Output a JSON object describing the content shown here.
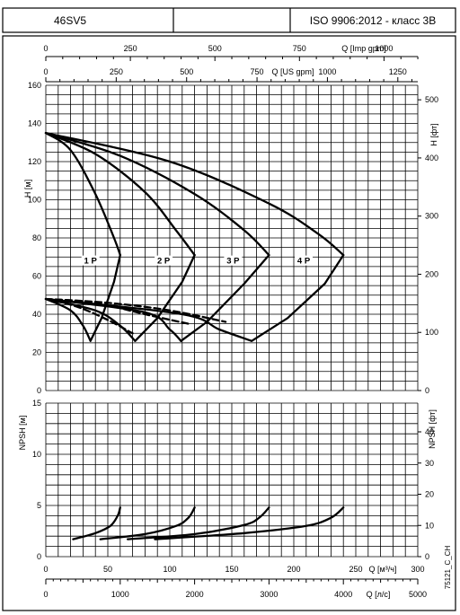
{
  "header": {
    "model": "46SV5",
    "standard": "ISO 9906:2012 - класс 3В"
  },
  "watermark": "75121_C_CH",
  "top_axes": {
    "imp_gpm": {
      "label": "Q [Imp gpm]",
      "ticks": [
        "0",
        "250",
        "500",
        "750",
        "1000"
      ],
      "values": [
        0,
        250,
        500,
        750,
        1000
      ]
    },
    "us_gpm": {
      "label": "Q [US gpm]",
      "ticks": [
        "0",
        "250",
        "500",
        "750",
        "1000",
        "1250"
      ],
      "values": [
        0,
        250,
        500,
        750,
        1000,
        1250
      ]
    }
  },
  "bottom_axes": {
    "m3h": {
      "label": "Q  [м³/ч]",
      "ticks": [
        "0",
        "50",
        "100",
        "150",
        "200",
        "250",
        "300"
      ],
      "values": [
        0,
        50,
        100,
        150,
        200,
        250,
        300
      ]
    },
    "ls": {
      "label": "Q  [л/с]",
      "ticks": [
        "0",
        "1000",
        "2000",
        "3000",
        "4000",
        "5000"
      ],
      "values": [
        0,
        1000,
        2000,
        3000,
        4000,
        5000
      ]
    }
  },
  "chart_data": [
    {
      "type": "line",
      "title": "",
      "xlabel": "Q [м³/ч]",
      "ylabel": "H [м]",
      "ylabel_right": "H [фт]",
      "xlim": [
        0,
        300
      ],
      "ylim": [
        0,
        160
      ],
      "y_ticks": [
        "0",
        "20",
        "40",
        "60",
        "80",
        "100",
        "120",
        "140",
        "160"
      ],
      "y_right_ticks": [
        "0",
        "100",
        "200",
        "300",
        "400",
        "500"
      ],
      "grid": true,
      "series": [
        {
          "name": "1 P",
          "x": [
            0,
            20,
            40,
            55,
            60
          ],
          "y": [
            135,
            126,
            103,
            80,
            71
          ]
        },
        {
          "name": "2 P",
          "x": [
            0,
            40,
            80,
            105,
            120
          ],
          "y": [
            135,
            124,
            104,
            84,
            71
          ]
        },
        {
          "name": "3 P",
          "x": [
            0,
            60,
            120,
            160,
            180
          ],
          "y": [
            135,
            123,
            103,
            84,
            71
          ]
        },
        {
          "name": "4 P",
          "x": [
            0,
            100,
            180,
            220,
            240
          ],
          "y": [
            135,
            120,
            98,
            82,
            71
          ]
        }
      ],
      "efficiency_curves": [
        {
          "x": [
            0,
            20,
            30,
            36,
            45,
            55,
            60
          ],
          "y": [
            48,
            42,
            34,
            26,
            38,
            57,
            71
          ]
        },
        {
          "x": [
            0,
            40,
            60,
            72,
            90,
            110,
            120
          ],
          "y": [
            48,
            42,
            34,
            26,
            38,
            57,
            71
          ]
        },
        {
          "x": [
            0,
            80,
            100,
            109,
            130,
            160,
            180
          ],
          "y": [
            48,
            41,
            32,
            26,
            36,
            56,
            71
          ]
        },
        {
          "x": [
            0,
            110,
            140,
            166,
            195,
            225,
            240
          ],
          "y": [
            48,
            40,
            32,
            26,
            38,
            56,
            71
          ]
        }
      ],
      "dashed_curves": [
        {
          "x": [
            0,
            25,
            50,
            70
          ],
          "y": [
            48,
            44,
            37,
            30
          ]
        },
        {
          "x": [
            0,
            40,
            80,
            115
          ],
          "y": [
            48,
            46,
            40,
            35
          ]
        },
        {
          "x": [
            0,
            50,
            100,
            145
          ],
          "y": [
            48,
            46,
            42,
            36
          ]
        }
      ],
      "stage_labels": [
        {
          "text": "1 P",
          "x": 36,
          "y": 67
        },
        {
          "text": "2 P",
          "x": 95,
          "y": 67
        },
        {
          "text": "3 P",
          "x": 151,
          "y": 67
        },
        {
          "text": "4 P",
          "x": 208,
          "y": 67
        }
      ]
    },
    {
      "type": "line",
      "title": "",
      "xlabel": "Q [м³/ч]",
      "ylabel": "NPSH [м]",
      "ylabel_right": "NPSH [фт]",
      "xlim": [
        0,
        300
      ],
      "ylim": [
        0,
        15
      ],
      "y_ticks": [
        "0",
        "5",
        "10",
        "15"
      ],
      "y_right_ticks": [
        "0",
        "10",
        "20",
        "30",
        "40"
      ],
      "grid": true,
      "series": [
        {
          "name": "1 P",
          "x": [
            22,
            40,
            52,
            58,
            60
          ],
          "y": [
            1.7,
            2.3,
            3.0,
            4.0,
            4.8
          ]
        },
        {
          "name": "2 P",
          "x": [
            44,
            80,
            105,
            115,
            120
          ],
          "y": [
            1.7,
            2.2,
            3.0,
            3.8,
            4.8
          ]
        },
        {
          "name": "3 P",
          "x": [
            66,
            120,
            160,
            172,
            180
          ],
          "y": [
            1.7,
            2.2,
            3.1,
            3.8,
            4.8
          ]
        },
        {
          "name": "4 P",
          "x": [
            88,
            160,
            210,
            230,
            240
          ],
          "y": [
            1.7,
            2.3,
            3.0,
            3.8,
            4.8
          ]
        }
      ]
    }
  ]
}
